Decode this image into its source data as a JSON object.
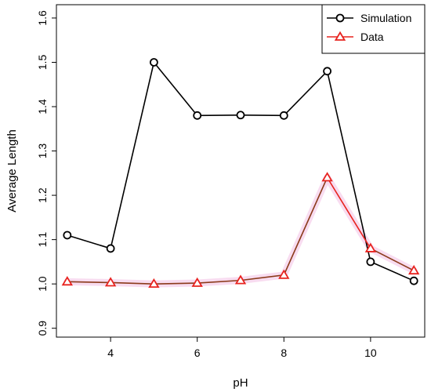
{
  "chart_data": {
    "type": "line",
    "title": "",
    "xlabel": "pH",
    "ylabel": "Average Length",
    "xlim": [
      2.75,
      11.25
    ],
    "ylim": [
      0.88,
      1.63
    ],
    "x_ticks": [
      4,
      6,
      8,
      10
    ],
    "y_ticks": [
      0.9,
      1.0,
      1.1,
      1.2,
      1.3,
      1.4,
      1.5,
      1.6
    ],
    "y_tick_labels": [
      "0.9",
      "1.0",
      "1.1",
      "1.2",
      "1.3",
      "1.4",
      "1.5",
      "1.6"
    ],
    "x": [
      3,
      4,
      5,
      6,
      7,
      8,
      9,
      10,
      11
    ],
    "grid": false,
    "legend_position": "top-right",
    "series": [
      {
        "name": "Simulation",
        "values": [
          1.11,
          1.08,
          1.5,
          1.38,
          1.381,
          1.38,
          1.48,
          1.05,
          1.007
        ],
        "color": "#000000",
        "marker": "circle"
      },
      {
        "name": "Data",
        "values": [
          1.005,
          1.003,
          1.0,
          1.002,
          1.008,
          1.02,
          1.24,
          1.08,
          1.03
        ],
        "color": "#e8231f",
        "marker": "triangle",
        "segment_colors": [
          "#8b3a1a",
          "#8b3a1a",
          "#8b3a1a",
          "#8b3a1a",
          "#8b3a1a",
          "#8b3a1a",
          "#e8231f",
          "#8b3a1a"
        ],
        "highlight_color": "#f7d6ee"
      }
    ]
  }
}
